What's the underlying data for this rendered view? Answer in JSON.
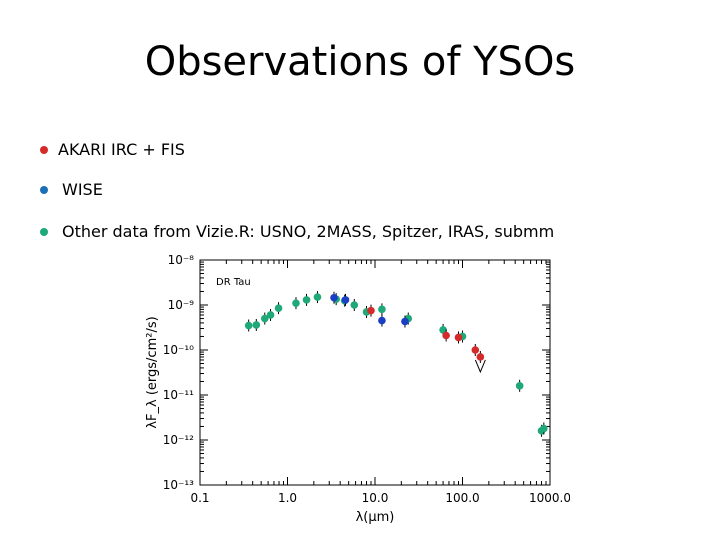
{
  "slide": {
    "title": "Observations of YSOs",
    "bullets": [
      {
        "text": "AKARI IRC + FIS",
        "color": "#d42a2a"
      },
      {
        "text": "WISE",
        "color": "#1b6fb5"
      },
      {
        "text": "Other data from Vizie.R: USNO, 2MASS, Spitzer, IRAS, submm",
        "color": "#1fa878"
      }
    ]
  },
  "chart_data": {
    "type": "scatter",
    "title": "DR Tau",
    "xlabel": "λ(μm)",
    "ylabel": "λF_λ (ergs/cm²/s)",
    "xscale": "log",
    "yscale": "log",
    "xlim": [
      0.1,
      1000
    ],
    "ylim": [
      1e-13,
      1e-08
    ],
    "x_ticks": [
      "0.1",
      "1.0",
      "10.0",
      "100.0",
      "1000.0"
    ],
    "y_ticks": [
      "10⁻¹³",
      "10⁻¹²",
      "10⁻¹¹",
      "10⁻¹⁰",
      "10⁻⁹",
      "10⁻⁸"
    ],
    "colors": {
      "other": "#1fa878",
      "wise": "#1a3fc4",
      "akari": "#d42a2a"
    },
    "series": [
      {
        "key": "other",
        "points": [
          [
            0.36,
            3.5e-10
          ],
          [
            0.44,
            3.6e-10
          ],
          [
            0.55,
            5e-10
          ],
          [
            0.64,
            6e-10
          ],
          [
            0.79,
            8.5e-10
          ],
          [
            1.25,
            1.1e-09
          ],
          [
            1.65,
            1.3e-09
          ],
          [
            2.2,
            1.5e-09
          ],
          [
            3.6,
            1.35e-09
          ],
          [
            4.5,
            1.25e-09
          ],
          [
            5.8,
            1e-09
          ],
          [
            8.0,
            7e-10
          ],
          [
            12.0,
            8e-10
          ],
          [
            24.0,
            5e-10
          ],
          [
            60.0,
            2.8e-10
          ],
          [
            100.0,
            2e-10
          ],
          [
            450.0,
            1.6e-11
          ],
          [
            800.0,
            1.6e-12
          ],
          [
            850.0,
            1.8e-12
          ]
        ]
      },
      {
        "key": "wise",
        "points": [
          [
            3.4,
            1.45e-09
          ],
          [
            4.6,
            1.3e-09
          ],
          [
            12.0,
            4.5e-10
          ],
          [
            22.0,
            4.3e-10
          ]
        ]
      },
      {
        "key": "akari",
        "points": [
          [
            9.0,
            7.5e-10
          ],
          [
            65.0,
            2.1e-10
          ],
          [
            90.0,
            1.9e-10
          ],
          [
            140.0,
            1e-10
          ],
          [
            160.0,
            7e-11
          ]
        ]
      }
    ],
    "upper_limits": [
      [
        160.0,
        6e-11
      ]
    ]
  }
}
